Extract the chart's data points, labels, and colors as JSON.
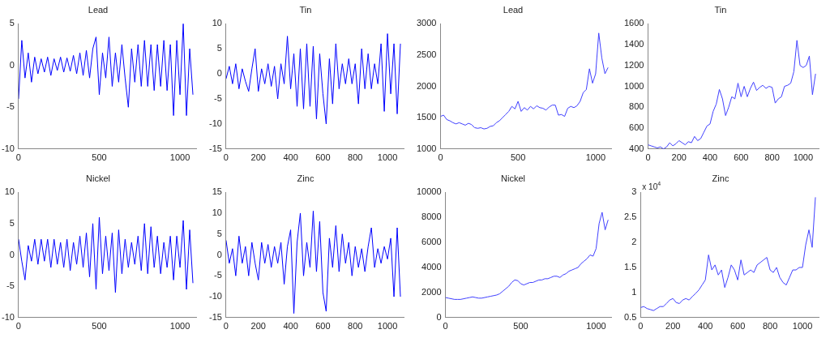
{
  "chart_data": [
    {
      "type": "line",
      "title": "Lead",
      "xlim": [
        0,
        1100
      ],
      "xticks": [
        0,
        500,
        1000
      ],
      "ylim": [
        -10,
        5
      ],
      "yticks": [
        -10,
        -5,
        0,
        5
      ],
      "x": [
        0,
        20,
        40,
        60,
        80,
        100,
        120,
        140,
        160,
        180,
        200,
        220,
        240,
        260,
        280,
        300,
        320,
        340,
        360,
        380,
        400,
        420,
        440,
        460,
        480,
        500,
        520,
        540,
        560,
        580,
        600,
        620,
        640,
        660,
        680,
        700,
        720,
        740,
        760,
        780,
        800,
        820,
        840,
        860,
        880,
        900,
        920,
        940,
        960,
        980,
        1000,
        1020,
        1040,
        1060,
        1080
      ],
      "series": [
        {
          "color": "#0000ff",
          "values": [
            -4,
            3,
            -1.5,
            1.5,
            -2,
            1,
            -1,
            0.8,
            -0.8,
            1,
            -1.2,
            0.8,
            -0.6,
            1,
            -0.8,
            0.9,
            -0.7,
            1.2,
            -1,
            1.5,
            -1.2,
            1.8,
            -1.5,
            2,
            3.4,
            -3.5,
            1.5,
            -1.5,
            3.4,
            -2.5,
            1.5,
            -2,
            2.5,
            -1.5,
            -5,
            2,
            -2,
            2.5,
            -2.5,
            3,
            -2.5,
            2.5,
            -3,
            2.5,
            -2.5,
            3,
            -3,
            2.5,
            -6,
            3,
            -3.5,
            5,
            -6,
            2,
            -3.5
          ]
        }
      ]
    },
    {
      "type": "line",
      "title": "Tin",
      "xlim": [
        0,
        1100
      ],
      "xticks": [
        0,
        200,
        400,
        600,
        800,
        1000
      ],
      "ylim": [
        -15,
        10
      ],
      "yticks": [
        -15,
        -10,
        -5,
        0,
        5,
        10
      ],
      "x": [
        0,
        20,
        40,
        60,
        80,
        100,
        120,
        140,
        160,
        180,
        200,
        220,
        240,
        260,
        280,
        300,
        320,
        340,
        360,
        380,
        400,
        420,
        440,
        460,
        480,
        500,
        520,
        540,
        560,
        580,
        600,
        620,
        640,
        660,
        680,
        700,
        720,
        740,
        760,
        780,
        800,
        820,
        840,
        860,
        880,
        900,
        920,
        940,
        960,
        980,
        1000,
        1020,
        1040,
        1060,
        1080
      ],
      "series": [
        {
          "color": "#0000ff",
          "values": [
            -1,
            1.5,
            -2,
            2,
            -3,
            1,
            -1.5,
            -3.5,
            1,
            5,
            -3.5,
            1,
            -2,
            2,
            -2.5,
            1.5,
            -5,
            2,
            -2,
            7.5,
            -3,
            4,
            -6.5,
            5,
            -7,
            6,
            -6.5,
            5.5,
            -9,
            4,
            -4,
            -10,
            3,
            -6,
            6,
            -3,
            2,
            -2,
            3,
            -2,
            2,
            -6,
            5,
            -3,
            4,
            -3,
            2,
            -2,
            6,
            -7.5,
            8,
            -4,
            6,
            -8,
            6
          ]
        }
      ]
    },
    {
      "type": "line",
      "title": "Lead",
      "xlim": [
        0,
        1100
      ],
      "xticks": [
        0,
        500,
        1000
      ],
      "ylim": [
        1000,
        3000
      ],
      "yticks": [
        1000,
        1500,
        2000,
        2500,
        3000
      ],
      "x": [
        0,
        20,
        40,
        60,
        80,
        100,
        120,
        140,
        160,
        180,
        200,
        220,
        240,
        260,
        280,
        300,
        320,
        340,
        360,
        380,
        400,
        420,
        440,
        460,
        480,
        500,
        520,
        540,
        560,
        580,
        600,
        620,
        640,
        660,
        680,
        700,
        720,
        740,
        760,
        780,
        800,
        820,
        840,
        860,
        880,
        900,
        920,
        940,
        960,
        980,
        1000,
        1020,
        1040,
        1060,
        1080
      ],
      "series": [
        {
          "color": "#4040ff",
          "values": [
            1520,
            1540,
            1470,
            1450,
            1420,
            1400,
            1420,
            1400,
            1380,
            1410,
            1390,
            1340,
            1330,
            1340,
            1320,
            1330,
            1360,
            1370,
            1420,
            1450,
            1500,
            1550,
            1600,
            1680,
            1640,
            1760,
            1600,
            1660,
            1620,
            1680,
            1640,
            1690,
            1660,
            1650,
            1620,
            1670,
            1700,
            1700,
            1540,
            1550,
            1520,
            1650,
            1680,
            1660,
            1690,
            1760,
            1900,
            1950,
            2280,
            2050,
            2200,
            2850,
            2450,
            2200,
            2300
          ]
        }
      ]
    },
    {
      "type": "line",
      "title": "Tin",
      "xlim": [
        0,
        1100
      ],
      "xticks": [
        0,
        200,
        400,
        600,
        800,
        1000
      ],
      "ylim": [
        400,
        1600
      ],
      "yticks": [
        400,
        600,
        800,
        1000,
        1200,
        1400,
        1600
      ],
      "x": [
        0,
        20,
        40,
        60,
        80,
        100,
        120,
        140,
        160,
        180,
        200,
        220,
        240,
        260,
        280,
        300,
        320,
        340,
        360,
        380,
        400,
        420,
        440,
        460,
        480,
        500,
        520,
        540,
        560,
        580,
        600,
        620,
        640,
        660,
        680,
        700,
        720,
        740,
        760,
        780,
        800,
        820,
        840,
        860,
        880,
        900,
        920,
        940,
        960,
        980,
        1000,
        1020,
        1040,
        1060,
        1080
      ],
      "series": [
        {
          "color": "#4040ff",
          "values": [
            440,
            430,
            420,
            410,
            420,
            400,
            420,
            460,
            430,
            450,
            480,
            460,
            440,
            470,
            460,
            520,
            480,
            500,
            560,
            620,
            640,
            760,
            830,
            970,
            880,
            720,
            800,
            900,
            880,
            1030,
            900,
            1000,
            900,
            980,
            1040,
            960,
            990,
            1010,
            980,
            1000,
            990,
            840,
            880,
            900,
            1000,
            1010,
            1030,
            1140,
            1440,
            1200,
            1180,
            1200,
            1290,
            920,
            1120
          ]
        }
      ]
    },
    {
      "type": "line",
      "title": "Nickel",
      "xlim": [
        0,
        1100
      ],
      "xticks": [
        0,
        500,
        1000
      ],
      "ylim": [
        -10,
        10
      ],
      "yticks": [
        -10,
        -5,
        0,
        5,
        10
      ],
      "x": [
        0,
        20,
        40,
        60,
        80,
        100,
        120,
        140,
        160,
        180,
        200,
        220,
        240,
        260,
        280,
        300,
        320,
        340,
        360,
        380,
        400,
        420,
        440,
        460,
        480,
        500,
        520,
        540,
        560,
        580,
        600,
        620,
        640,
        660,
        680,
        700,
        720,
        740,
        760,
        780,
        800,
        820,
        840,
        860,
        880,
        900,
        920,
        940,
        960,
        980,
        1000,
        1020,
        1040,
        1060,
        1080
      ],
      "series": [
        {
          "color": "#0000ff",
          "values": [
            2.5,
            -1,
            -4,
            1.5,
            -1,
            2.5,
            -1.5,
            2.5,
            -1,
            2.5,
            -2,
            2.5,
            -1.5,
            2,
            -2,
            2.5,
            -2.5,
            2,
            -1.5,
            3,
            -2,
            3.5,
            -3.5,
            5,
            -5.5,
            6,
            -3,
            3,
            -2.5,
            3.5,
            -6,
            4,
            -3,
            2.5,
            -2,
            2,
            -1.5,
            3,
            -2.5,
            5,
            -3,
            4.5,
            -2,
            3,
            -3,
            2,
            -2,
            3,
            -4,
            3,
            -2,
            5.5,
            -5.5,
            4,
            -4.5
          ]
        }
      ]
    },
    {
      "type": "line",
      "title": "Zinc",
      "xlim": [
        0,
        1100
      ],
      "xticks": [
        0,
        200,
        400,
        600,
        800,
        1000
      ],
      "ylim": [
        -15,
        15
      ],
      "yticks": [
        -15,
        -10,
        -5,
        0,
        5,
        10,
        15
      ],
      "x": [
        0,
        20,
        40,
        60,
        80,
        100,
        120,
        140,
        160,
        180,
        200,
        220,
        240,
        260,
        280,
        300,
        320,
        340,
        360,
        380,
        400,
        420,
        440,
        460,
        480,
        500,
        520,
        540,
        560,
        580,
        600,
        620,
        640,
        660,
        680,
        700,
        720,
        740,
        760,
        780,
        800,
        820,
        840,
        860,
        880,
        900,
        920,
        940,
        960,
        980,
        1000,
        1020,
        1040,
        1060,
        1080
      ],
      "series": [
        {
          "color": "#0000ff",
          "values": [
            3.5,
            -2,
            1.5,
            -5,
            4.5,
            -2,
            2,
            -5,
            3,
            -2,
            -6,
            3,
            -2,
            2.5,
            -3,
            2,
            -2,
            3,
            -7,
            2,
            6,
            -14,
            3,
            10,
            -5,
            3,
            -3,
            10.5,
            -4,
            8,
            -9,
            -13.5,
            4,
            -3,
            7,
            -4,
            5,
            -2,
            3,
            -5,
            2,
            -3,
            1.5,
            -4,
            2,
            6.5,
            -3,
            1.5,
            -2,
            2,
            -1,
            4,
            -10,
            6.5,
            -10
          ]
        }
      ]
    },
    {
      "type": "line",
      "title": "Nickel",
      "xlim": [
        0,
        1100
      ],
      "xticks": [
        0,
        500,
        1000
      ],
      "ylim": [
        0,
        10000
      ],
      "yticks": [
        0,
        2000,
        4000,
        6000,
        8000,
        10000
      ],
      "x": [
        0,
        20,
        40,
        60,
        80,
        100,
        120,
        140,
        160,
        180,
        200,
        220,
        240,
        260,
        280,
        300,
        320,
        340,
        360,
        380,
        400,
        420,
        440,
        460,
        480,
        500,
        520,
        540,
        560,
        580,
        600,
        620,
        640,
        660,
        680,
        700,
        720,
        740,
        760,
        780,
        800,
        820,
        840,
        860,
        880,
        900,
        920,
        940,
        960,
        980,
        1000,
        1020,
        1040,
        1060,
        1080
      ],
      "series": [
        {
          "color": "#4040ff",
          "values": [
            1600,
            1550,
            1500,
            1450,
            1450,
            1450,
            1500,
            1550,
            1600,
            1650,
            1600,
            1550,
            1550,
            1600,
            1650,
            1700,
            1750,
            1800,
            1900,
            2100,
            2300,
            2500,
            2800,
            3000,
            2950,
            2700,
            2600,
            2700,
            2800,
            2800,
            2900,
            3000,
            3000,
            3100,
            3100,
            3200,
            3300,
            3300,
            3200,
            3400,
            3500,
            3700,
            3800,
            3900,
            4000,
            4300,
            4500,
            4700,
            5000,
            4900,
            5500,
            7500,
            8400,
            7000,
            7800
          ]
        }
      ]
    },
    {
      "type": "line",
      "title": "Zinc",
      "annotations": [
        "x 10$^{4}$"
      ],
      "xlim": [
        0,
        1100
      ],
      "xticks": [
        0,
        200,
        400,
        600,
        800,
        1000
      ],
      "ylim": [
        0.5,
        3
      ],
      "yticks": [
        0.5,
        1,
        1.5,
        2,
        2.5,
        3
      ],
      "x": [
        0,
        20,
        40,
        60,
        80,
        100,
        120,
        140,
        160,
        180,
        200,
        220,
        240,
        260,
        280,
        300,
        320,
        340,
        360,
        380,
        400,
        420,
        440,
        460,
        480,
        500,
        520,
        540,
        560,
        580,
        600,
        620,
        640,
        660,
        680,
        700,
        720,
        740,
        760,
        780,
        800,
        820,
        840,
        860,
        880,
        900,
        920,
        940,
        960,
        980,
        1000,
        1020,
        1040,
        1060,
        1080
      ],
      "series": [
        {
          "color": "#4040ff",
          "values": [
            0.7,
            0.72,
            0.68,
            0.66,
            0.64,
            0.68,
            0.72,
            0.72,
            0.78,
            0.85,
            0.88,
            0.8,
            0.78,
            0.85,
            0.88,
            0.85,
            0.92,
            0.98,
            1.05,
            1.15,
            1.25,
            1.75,
            1.45,
            1.55,
            1.35,
            1.45,
            1.1,
            1.3,
            1.55,
            1.45,
            1.25,
            1.65,
            1.35,
            1.4,
            1.45,
            1.4,
            1.55,
            1.6,
            1.65,
            1.7,
            1.45,
            1.4,
            1.5,
            1.3,
            1.2,
            1.15,
            1.3,
            1.45,
            1.45,
            1.5,
            1.5,
            1.95,
            2.25,
            1.9,
            2.9
          ]
        }
      ]
    }
  ]
}
